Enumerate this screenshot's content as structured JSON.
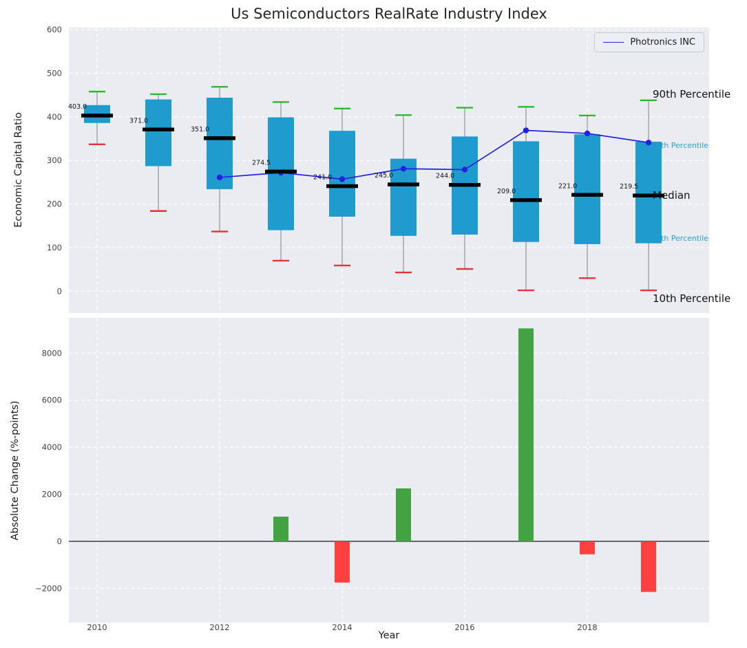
{
  "colors": {
    "plot_bg": "#eaecf2",
    "grid": "#ffffff",
    "box_fill": "#1f9bce",
    "cap_high": "#2db82d",
    "cap_low": "#e53333",
    "median": "#000000",
    "whisker": "#9a9a9a",
    "company_line": "#2222e0",
    "bar_up": "#43a343",
    "bar_down": "#ff4040",
    "label_teal": "#29a3cc",
    "tick_text": "#444444"
  },
  "chart_data": [
    {
      "type": "boxplot-line",
      "title": "Us Semiconductors RealRate Industry Index",
      "ylabel": "Economic Capital Ratio",
      "ylim": [
        -50,
        605
      ],
      "yticks": [
        0,
        100,
        200,
        300,
        400,
        500,
        600
      ],
      "xticks": [
        2010,
        2012,
        2014,
        2016,
        2018
      ],
      "grid": true,
      "legend_position": "upper right",
      "boxes": [
        {
          "year": 2010,
          "p10": 337,
          "p25": 386,
          "median": 403.0,
          "p75": 427,
          "p90": 458,
          "median_label": "403.0"
        },
        {
          "year": 2011,
          "p10": 184,
          "p25": 287,
          "median": 371.0,
          "p75": 440,
          "p90": 452,
          "median_label": "371.0"
        },
        {
          "year": 2012,
          "p10": 137,
          "p25": 234,
          "median": 351.0,
          "p75": 444,
          "p90": 469,
          "median_label": "351.0"
        },
        {
          "year": 2013,
          "p10": 70,
          "p25": 140,
          "median": 274.5,
          "p75": 399,
          "p90": 434,
          "median_label": "274.5"
        },
        {
          "year": 2014,
          "p10": 59,
          "p25": 171,
          "median": 241.0,
          "p75": 368,
          "p90": 419,
          "median_label": "241.0"
        },
        {
          "year": 2015,
          "p10": 43,
          "p25": 127,
          "median": 245.0,
          "p75": 304,
          "p90": 404,
          "median_label": "245.0"
        },
        {
          "year": 2016,
          "p10": 51,
          "p25": 130,
          "median": 244.0,
          "p75": 355,
          "p90": 421,
          "median_label": "244.0"
        },
        {
          "year": 2017,
          "p10": 2,
          "p25": 113,
          "median": 209.0,
          "p75": 344,
          "p90": 423,
          "median_label": "209.0"
        },
        {
          "year": 2018,
          "p10": 30,
          "p25": 108,
          "median": 221.0,
          "p75": 360,
          "p90": 403,
          "median_label": "221.0"
        },
        {
          "year": 2019,
          "p10": 2,
          "p25": 110,
          "median": 219.5,
          "p75": 343,
          "p90": 438,
          "median_label": "219.5"
        }
      ],
      "line": {
        "name": "Photronics INC",
        "x": [
          2012,
          2013,
          2014,
          2015,
          2016,
          2017,
          2018,
          2019
        ],
        "y": [
          261,
          272,
          257,
          281,
          279,
          369,
          362,
          341
        ]
      },
      "right_labels": [
        {
          "text": "90th Percentile",
          "value": 450,
          "style": "dark"
        },
        {
          "text": "5th Percentile",
          "value": 333,
          "style": "teal"
        },
        {
          "text": "Median",
          "value": 218,
          "style": "dark"
        },
        {
          "text": "5th Percentile",
          "value": 121,
          "style": "teal"
        },
        {
          "text": "10th Percentile",
          "value": -18,
          "style": "dark"
        }
      ]
    },
    {
      "type": "bar",
      "ylabel": "Absolute Change (%-points)",
      "xlabel": "Year",
      "ylim": [
        -3450,
        9500
      ],
      "yticks": [
        -2000,
        0,
        2000,
        4000,
        6000,
        8000
      ],
      "xticks": [
        2010,
        2012,
        2014,
        2016,
        2018
      ],
      "grid": true,
      "categories": [
        2013,
        2014,
        2015,
        2017,
        2018,
        2019
      ],
      "values": [
        1050,
        -1750,
        2250,
        9050,
        -550,
        -2150
      ]
    }
  ]
}
